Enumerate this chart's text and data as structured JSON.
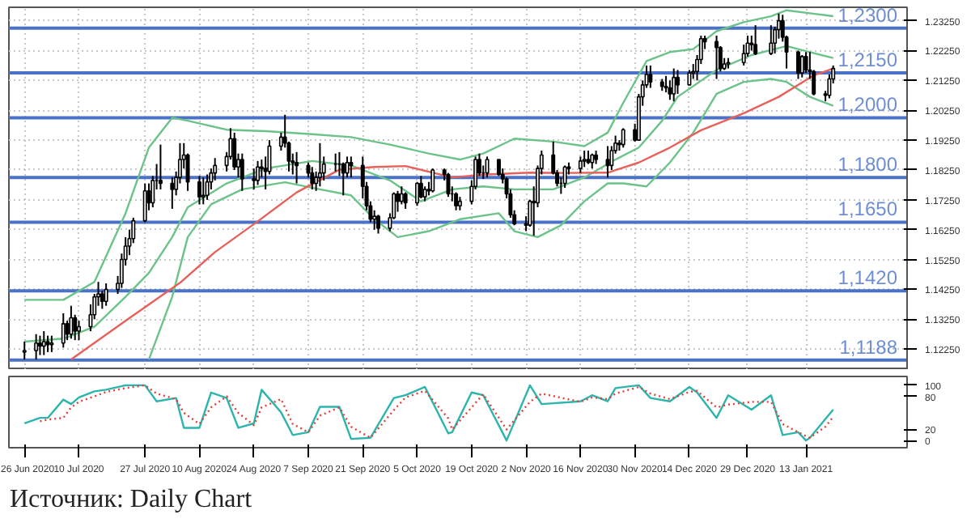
{
  "chart_data": [
    {
      "type": "candlestick",
      "x": [
        "2020-06-26",
        "2020-06-29",
        "2020-06-30",
        "2020-07-01",
        "2020-07-02",
        "2020-07-03",
        "2020-07-06",
        "2020-07-07",
        "2020-07-08",
        "2020-07-09",
        "2020-07-10",
        "2020-07-13",
        "2020-07-14",
        "2020-07-15",
        "2020-07-16",
        "2020-07-17",
        "2020-07-20",
        "2020-07-21",
        "2020-07-22",
        "2020-07-23",
        "2020-07-24",
        "2020-07-27",
        "2020-07-28",
        "2020-07-29",
        "2020-07-30",
        "2020-07-31",
        "2020-08-03",
        "2020-08-04",
        "2020-08-05",
        "2020-08-06",
        "2020-08-07",
        "2020-08-10",
        "2020-08-11",
        "2020-08-12",
        "2020-08-13",
        "2020-08-14",
        "2020-08-17",
        "2020-08-18",
        "2020-08-19",
        "2020-08-20",
        "2020-08-21",
        "2020-08-24",
        "2020-08-25",
        "2020-08-26",
        "2020-08-27",
        "2020-08-28",
        "2020-08-31",
        "2020-09-01",
        "2020-09-02",
        "2020-09-03",
        "2020-09-04",
        "2020-09-07",
        "2020-09-08",
        "2020-09-09",
        "2020-09-10",
        "2020-09-11",
        "2020-09-14",
        "2020-09-15",
        "2020-09-16",
        "2020-09-17",
        "2020-09-18",
        "2020-09-21",
        "2020-09-22",
        "2020-09-23",
        "2020-09-24",
        "2020-09-25",
        "2020-09-28",
        "2020-09-29",
        "2020-09-30",
        "2020-10-01",
        "2020-10-02",
        "2020-10-05",
        "2020-10-06",
        "2020-10-07",
        "2020-10-08",
        "2020-10-09",
        "2020-10-12",
        "2020-10-13",
        "2020-10-14",
        "2020-10-15",
        "2020-10-16",
        "2020-10-19",
        "2020-10-20",
        "2020-10-21",
        "2020-10-22",
        "2020-10-23",
        "2020-10-26",
        "2020-10-27",
        "2020-10-28",
        "2020-10-29",
        "2020-10-30",
        "2020-11-02",
        "2020-11-03",
        "2020-11-04",
        "2020-11-05",
        "2020-11-06",
        "2020-11-09",
        "2020-11-10",
        "2020-11-11",
        "2020-11-12",
        "2020-11-13",
        "2020-11-16",
        "2020-11-17",
        "2020-11-18",
        "2020-11-19",
        "2020-11-20",
        "2020-11-23",
        "2020-11-24",
        "2020-11-25",
        "2020-11-26",
        "2020-11-27",
        "2020-11-30",
        "2020-12-01",
        "2020-12-02",
        "2020-12-03",
        "2020-12-04",
        "2020-12-07",
        "2020-12-08",
        "2020-12-09",
        "2020-12-10",
        "2020-12-11",
        "2020-12-14",
        "2020-12-15",
        "2020-12-16",
        "2020-12-17",
        "2020-12-18",
        "2020-12-21",
        "2020-12-22",
        "2020-12-23",
        "2020-12-24",
        "2020-12-28",
        "2020-12-29",
        "2020-12-30",
        "2020-12-31",
        "2021-01-04",
        "2021-01-05",
        "2021-01-06",
        "2021-01-07",
        "2021-01-08",
        "2021-01-11",
        "2021-01-12",
        "2021-01-13",
        "2021-01-14",
        "2021-01-15",
        "2021-01-18",
        "2021-01-19",
        "2021-01-20"
      ],
      "ohlc": [
        [
          1.1215,
          1.125,
          1.119,
          1.122
        ],
        [
          1.122,
          1.1275,
          1.119,
          1.1245
        ],
        [
          1.1245,
          1.127,
          1.1205,
          1.1235
        ],
        [
          1.1235,
          1.1285,
          1.1205,
          1.125
        ],
        [
          1.125,
          1.127,
          1.1215,
          1.124
        ],
        [
          1.124,
          1.127,
          1.1215,
          1.1245
        ],
        [
          1.1245,
          1.1345,
          1.123,
          1.131
        ],
        [
          1.131,
          1.132,
          1.1255,
          1.1275
        ],
        [
          1.1275,
          1.137,
          1.126,
          1.133
        ],
        [
          1.133,
          1.134,
          1.1255,
          1.1285
        ],
        [
          1.1285,
          1.132,
          1.1255,
          1.13
        ],
        [
          1.13,
          1.1375,
          1.1285,
          1.134
        ],
        [
          1.134,
          1.141,
          1.1325,
          1.14
        ],
        [
          1.14,
          1.145,
          1.137,
          1.141
        ],
        [
          1.141,
          1.142,
          1.136,
          1.1385
        ],
        [
          1.1385,
          1.1445,
          1.137,
          1.1425
        ],
        [
          1.1425,
          1.147,
          1.141,
          1.1445
        ],
        [
          1.1445,
          1.1545,
          1.143,
          1.1525
        ],
        [
          1.1525,
          1.16,
          1.1505,
          1.157
        ],
        [
          1.157,
          1.1625,
          1.154,
          1.1595
        ],
        [
          1.1595,
          1.1665,
          1.158,
          1.1655
        ],
        [
          1.1655,
          1.178,
          1.165,
          1.1755
        ],
        [
          1.1755,
          1.178,
          1.169,
          1.1715
        ],
        [
          1.1715,
          1.1805,
          1.17,
          1.179
        ],
        [
          1.179,
          1.1845,
          1.176,
          1.179
        ],
        [
          1.179,
          1.191,
          1.176,
          1.178
        ],
        [
          1.178,
          1.18,
          1.1695,
          1.176
        ],
        [
          1.176,
          1.182,
          1.174,
          1.18
        ],
        [
          1.18,
          1.1915,
          1.178,
          1.186
        ],
        [
          1.186,
          1.1915,
          1.183,
          1.1875
        ],
        [
          1.1875,
          1.188,
          1.1755,
          1.1785
        ],
        [
          1.1785,
          1.1805,
          1.171,
          1.1735
        ],
        [
          1.1735,
          1.18,
          1.171,
          1.174
        ],
        [
          1.174,
          1.181,
          1.1725,
          1.1785
        ],
        [
          1.1785,
          1.183,
          1.176,
          1.1815
        ],
        [
          1.1815,
          1.1865,
          1.179,
          1.184
        ],
        [
          1.184,
          1.1885,
          1.182,
          1.187
        ],
        [
          1.187,
          1.1965,
          1.186,
          1.193
        ],
        [
          1.193,
          1.195,
          1.1825,
          1.1835
        ],
        [
          1.1835,
          1.188,
          1.18,
          1.186
        ],
        [
          1.186,
          1.188,
          1.1755,
          1.1795
        ],
        [
          1.1795,
          1.183,
          1.176,
          1.179
        ],
        [
          1.179,
          1.1855,
          1.1775,
          1.1835
        ],
        [
          1.1835,
          1.186,
          1.18,
          1.183
        ],
        [
          1.183,
          1.187,
          1.176,
          1.182
        ],
        [
          1.182,
          1.1925,
          1.181,
          1.1905
        ],
        [
          1.1905,
          1.195,
          1.189,
          1.1935
        ],
        [
          1.1935,
          1.201,
          1.19,
          1.1915
        ],
        [
          1.1915,
          1.192,
          1.182,
          1.1855
        ],
        [
          1.1855,
          1.188,
          1.181,
          1.185
        ],
        [
          1.185,
          1.1885,
          1.178,
          1.184
        ],
        [
          1.184,
          1.185,
          1.18,
          1.1815
        ],
        [
          1.1815,
          1.1835,
          1.176,
          1.178
        ],
        [
          1.178,
          1.182,
          1.1755,
          1.18
        ],
        [
          1.18,
          1.1915,
          1.177,
          1.1815
        ],
        [
          1.1815,
          1.187,
          1.179,
          1.1845
        ],
        [
          1.1845,
          1.188,
          1.182,
          1.1845
        ],
        [
          1.1845,
          1.1885,
          1.1805,
          1.1845
        ],
        [
          1.1845,
          1.185,
          1.174,
          1.1815
        ],
        [
          1.1815,
          1.187,
          1.18,
          1.185
        ],
        [
          1.185,
          1.187,
          1.18,
          1.184
        ],
        [
          1.184,
          1.187,
          1.173,
          1.177
        ],
        [
          1.177,
          1.1785,
          1.169,
          1.1705
        ],
        [
          1.1705,
          1.172,
          1.165,
          1.166
        ],
        [
          1.166,
          1.169,
          1.1625,
          1.167
        ],
        [
          1.167,
          1.1675,
          1.1612,
          1.163
        ],
        [
          1.163,
          1.168,
          1.162,
          1.1665
        ],
        [
          1.1665,
          1.175,
          1.166,
          1.1745
        ],
        [
          1.1745,
          1.1755,
          1.1685,
          1.172
        ],
        [
          1.172,
          1.177,
          1.171,
          1.1745
        ],
        [
          1.1745,
          1.175,
          1.1695,
          1.1715
        ],
        [
          1.1715,
          1.1785,
          1.1705,
          1.178
        ],
        [
          1.178,
          1.1805,
          1.173,
          1.1735
        ],
        [
          1.1735,
          1.177,
          1.172,
          1.176
        ],
        [
          1.176,
          1.1785,
          1.174,
          1.1755
        ],
        [
          1.1755,
          1.183,
          1.175,
          1.1825
        ],
        [
          1.1825,
          1.183,
          1.179,
          1.181
        ],
        [
          1.181,
          1.1815,
          1.1735,
          1.1745
        ],
        [
          1.1745,
          1.177,
          1.172,
          1.1745
        ],
        [
          1.1745,
          1.175,
          1.169,
          1.1705
        ],
        [
          1.1705,
          1.1735,
          1.169,
          1.172
        ],
        [
          1.172,
          1.179,
          1.171,
          1.177
        ],
        [
          1.177,
          1.187,
          1.176,
          1.186
        ],
        [
          1.186,
          1.188,
          1.1805,
          1.1815
        ],
        [
          1.1815,
          1.184,
          1.1795,
          1.1815
        ],
        [
          1.1815,
          1.187,
          1.18,
          1.186
        ],
        [
          1.186,
          1.186,
          1.1805,
          1.181
        ],
        [
          1.181,
          1.183,
          1.178,
          1.1795
        ],
        [
          1.1795,
          1.18,
          1.173,
          1.1745
        ],
        [
          1.1745,
          1.176,
          1.1665,
          1.1675
        ],
        [
          1.1675,
          1.169,
          1.164,
          1.1645
        ],
        [
          1.1645,
          1.167,
          1.162,
          1.164
        ],
        [
          1.164,
          1.1725,
          1.1635,
          1.172
        ],
        [
          1.172,
          1.177,
          1.1605,
          1.1715
        ],
        [
          1.1715,
          1.184,
          1.17,
          1.183
        ],
        [
          1.183,
          1.189,
          1.181,
          1.1875
        ],
        [
          1.1875,
          1.192,
          1.181,
          1.1815
        ],
        [
          1.1815,
          1.1825,
          1.177,
          1.178
        ],
        [
          1.178,
          1.18,
          1.1745,
          1.178
        ],
        [
          1.178,
          1.184,
          1.1765,
          1.1835
        ],
        [
          1.1835,
          1.185,
          1.181,
          1.183
        ],
        [
          1.183,
          1.187,
          1.1815,
          1.1855
        ],
        [
          1.1855,
          1.189,
          1.1835,
          1.186
        ],
        [
          1.186,
          1.189,
          1.1845,
          1.185
        ],
        [
          1.185,
          1.188,
          1.183,
          1.1875
        ],
        [
          1.1875,
          1.189,
          1.1845,
          1.186
        ],
        [
          1.186,
          1.1905,
          1.18,
          1.184
        ],
        [
          1.184,
          1.1905,
          1.1825,
          1.189
        ],
        [
          1.189,
          1.194,
          1.188,
          1.1915
        ],
        [
          1.1915,
          1.1925,
          1.189,
          1.191
        ],
        [
          1.191,
          1.1965,
          1.19,
          1.196
        ],
        [
          1.196,
          1.198,
          1.192,
          1.1925
        ],
        [
          1.1925,
          1.208,
          1.1925,
          1.207
        ],
        [
          1.207,
          1.2125,
          1.204,
          1.211
        ],
        [
          1.211,
          1.2175,
          1.21,
          1.2145
        ],
        [
          1.2145,
          1.2175,
          1.21,
          1.212
        ],
        [
          1.212,
          1.213,
          1.209,
          1.2105
        ],
        [
          1.2105,
          1.214,
          1.2085,
          1.21
        ],
        [
          1.21,
          1.2125,
          1.206,
          1.208
        ],
        [
          1.208,
          1.2165,
          1.2055,
          1.2135
        ],
        [
          1.2135,
          1.216,
          1.208,
          1.211
        ],
        [
          1.211,
          1.216,
          1.211,
          1.215
        ],
        [
          1.215,
          1.218,
          1.213,
          1.2155
        ],
        [
          1.2155,
          1.221,
          1.2125,
          1.2195
        ],
        [
          1.2195,
          1.2275,
          1.218,
          1.2265
        ],
        [
          1.2265,
          1.2275,
          1.223,
          1.2255
        ],
        [
          1.2255,
          1.2275,
          1.213,
          1.2235
        ],
        [
          1.2235,
          1.224,
          1.2155,
          1.2165
        ],
        [
          1.2165,
          1.22,
          1.216,
          1.218
        ],
        [
          1.218,
          1.22,
          1.2165,
          1.2185
        ],
        [
          1.2185,
          1.2245,
          1.2175,
          1.2215
        ],
        [
          1.2215,
          1.2275,
          1.2205,
          1.225
        ],
        [
          1.225,
          1.2275,
          1.2225,
          1.2245
        ],
        [
          1.2245,
          1.231,
          1.221,
          1.2215
        ],
        [
          1.2215,
          1.231,
          1.221,
          1.225
        ],
        [
          1.225,
          1.2305,
          1.2215,
          1.2295
        ],
        [
          1.2295,
          1.2349,
          1.2265,
          1.2325
        ],
        [
          1.2325,
          1.2345,
          1.2255,
          1.227
        ],
        [
          1.227,
          1.2275,
          1.2165,
          1.222
        ],
        [
          1.222,
          1.2225,
          1.213,
          1.215
        ],
        [
          1.215,
          1.221,
          1.2135,
          1.2205
        ],
        [
          1.2205,
          1.222,
          1.215,
          1.216
        ],
        [
          1.216,
          1.222,
          1.213,
          1.2155
        ],
        [
          1.2155,
          1.216,
          1.2075,
          1.208
        ],
        [
          1.208,
          1.209,
          1.2055,
          1.2075
        ],
        [
          1.2075,
          1.2145,
          1.2065,
          1.213
        ],
        [
          1.213,
          1.2175,
          1.2115,
          1.2165
        ]
      ],
      "series": [
        {
          "type": "line",
          "color": "#6cc38a",
          "x": [
            "2020-06-26",
            "2020-07-06",
            "2020-07-14",
            "2020-07-22",
            "2020-07-28",
            "2020-08-03",
            "2020-08-07",
            "2020-08-17",
            "2020-08-27",
            "2020-09-08",
            "2020-09-18",
            "2020-09-28",
            "2020-10-08",
            "2020-10-16",
            "2020-10-22",
            "2020-10-30",
            "2020-11-09",
            "2020-11-17",
            "2020-11-23",
            "2020-11-27",
            "2020-12-03",
            "2020-12-09",
            "2020-12-15",
            "2020-12-21",
            "2020-12-28",
            "2021-01-04",
            "2021-01-08",
            "2021-01-14",
            "2021-01-20"
          ],
          "values": [
            1.139,
            1.139,
            1.145,
            1.168,
            1.19,
            1.2,
            1.199,
            1.196,
            1.1955,
            1.1945,
            1.1935,
            1.191,
            1.188,
            1.186,
            1.188,
            1.193,
            1.192,
            1.1905,
            1.195,
            1.205,
            1.219,
            1.222,
            1.223,
            1.229,
            1.232,
            1.234,
            1.236,
            1.235,
            1.234
          ]
        },
        {
          "type": "line",
          "color": "#6cc38a",
          "x": [
            "2020-06-26",
            "2020-07-06",
            "2020-07-14",
            "2020-07-22",
            "2020-07-28",
            "2020-08-03",
            "2020-08-07",
            "2020-08-17",
            "2020-08-27",
            "2020-09-08",
            "2020-09-18",
            "2020-09-28",
            "2020-10-06",
            "2020-10-14",
            "2020-10-22",
            "2020-10-30",
            "2020-11-09",
            "2020-11-17",
            "2020-11-25",
            "2020-12-01",
            "2020-12-07",
            "2020-12-11",
            "2020-12-21",
            "2020-12-30",
            "2021-01-08",
            "2021-01-14",
            "2021-01-20"
          ],
          "values": [
            1.125,
            1.126,
            1.13,
            1.14,
            1.148,
            1.16,
            1.17,
            1.178,
            1.183,
            1.1855,
            1.184,
            1.179,
            1.172,
            1.176,
            1.177,
            1.176,
            1.176,
            1.18,
            1.186,
            1.19,
            1.199,
            1.207,
            1.216,
            1.221,
            1.224,
            1.222,
            1.22
          ]
        },
        {
          "type": "line",
          "color": "#6cc38a",
          "x": [
            "2020-07-28",
            "2020-08-03",
            "2020-08-07",
            "2020-08-13",
            "2020-08-21",
            "2020-09-01",
            "2020-09-10",
            "2020-09-18",
            "2020-09-24",
            "2020-09-30",
            "2020-10-08",
            "2020-10-16",
            "2020-10-26",
            "2020-10-30",
            "2020-11-05",
            "2020-11-11",
            "2020-11-17",
            "2020-11-23",
            "2020-11-27",
            "2020-12-03",
            "2020-12-09",
            "2020-12-15",
            "2020-12-21",
            "2020-12-28",
            "2021-01-04",
            "2021-01-08",
            "2021-01-14",
            "2021-01-20"
          ],
          "values": [
            1.119,
            1.14,
            1.16,
            1.171,
            1.176,
            1.1784,
            1.176,
            1.174,
            1.166,
            1.16,
            1.162,
            1.166,
            1.168,
            1.162,
            1.16,
            1.164,
            1.172,
            1.178,
            1.178,
            1.177,
            1.185,
            1.195,
            1.208,
            1.212,
            1.213,
            1.212,
            1.207,
            1.204
          ]
        },
        {
          "type": "line",
          "color": "#e8605a",
          "x": [
            "2020-07-08",
            "2020-07-22",
            "2020-08-05",
            "2020-08-14",
            "2020-08-25",
            "2020-09-04",
            "2020-09-15",
            "2020-09-24",
            "2020-10-02",
            "2020-10-14",
            "2020-10-23",
            "2020-11-03",
            "2020-11-12",
            "2020-11-23",
            "2020-12-01",
            "2020-12-09",
            "2020-12-17",
            "2020-12-28",
            "2021-01-06",
            "2021-01-15",
            "2021-01-20"
          ],
          "values": [
            1.119,
            1.132,
            1.1447,
            1.155,
            1.1653,
            1.175,
            1.1826,
            1.1835,
            1.1838,
            1.18,
            1.181,
            1.1816,
            1.1815,
            1.1816,
            1.185,
            1.19,
            1.1958,
            1.2015,
            1.207,
            1.2142,
            1.2165
          ]
        }
      ],
      "ref_lines": [
        {
          "axis": "y",
          "value": 1.23,
          "label": "1,2300",
          "color": "#4a72c8"
        },
        {
          "axis": "y",
          "value": 1.215,
          "label": "1,2150",
          "color": "#4a72c8"
        },
        {
          "axis": "y",
          "value": 1.2,
          "label": "1,2000",
          "color": "#4a72c8"
        },
        {
          "axis": "y",
          "value": 1.18,
          "label": "1,1800",
          "color": "#4a72c8"
        },
        {
          "axis": "y",
          "value": 1.165,
          "label": "1,1650",
          "color": "#4a72c8"
        },
        {
          "axis": "y",
          "value": 1.142,
          "label": "1,1420",
          "color": "#4a72c8"
        },
        {
          "axis": "y",
          "value": 1.1188,
          "label": "1,1188",
          "color": "#4a72c8"
        }
      ],
      "xlim": [
        "2020-06-22",
        "2021-02-08"
      ],
      "ylim": [
        1.1155,
        1.237
      ],
      "xticks": [
        {
          "value": "2020-06-26",
          "label": null
        },
        {
          "value": "2020-07-10",
          "label": null
        },
        {
          "value": "2020-07-27",
          "label": null
        },
        {
          "value": "2020-08-10",
          "label": null
        },
        {
          "value": "2020-08-24",
          "label": null
        },
        {
          "value": "2020-09-07",
          "label": null
        },
        {
          "value": "2020-09-21",
          "label": null
        },
        {
          "value": "2020-10-05",
          "label": null
        },
        {
          "value": "2020-10-19",
          "label": null
        },
        {
          "value": "2020-11-02",
          "label": null
        },
        {
          "value": "2020-11-16",
          "label": null
        },
        {
          "value": "2020-11-30",
          "label": null
        },
        {
          "value": "2020-12-14",
          "label": null
        },
        {
          "value": "2020-12-29",
          "label": null
        },
        {
          "value": "2021-01-13",
          "label": null
        }
      ],
      "yticks": [
        {
          "value": 1.1225,
          "label": "1.12250"
        },
        {
          "value": 1.1325,
          "label": "1.13250"
        },
        {
          "value": 1.1425,
          "label": "1.14250"
        },
        {
          "value": 1.1525,
          "label": "1.15250"
        },
        {
          "value": 1.1625,
          "label": "1.16250"
        },
        {
          "value": 1.1725,
          "label": "1.17250"
        },
        {
          "value": 1.1825,
          "label": "1.18250"
        },
        {
          "value": 1.1925,
          "label": "1.19250"
        },
        {
          "value": 1.2025,
          "label": "1.20250"
        },
        {
          "value": 1.2125,
          "label": "1.21250"
        },
        {
          "value": 1.2225,
          "label": "1.22250"
        },
        {
          "value": 1.2325,
          "label": "1.23250"
        }
      ],
      "grid": true,
      "tick_labels": "y"
    },
    {
      "type": "line",
      "series": [
        {
          "color": "#2bb5ad",
          "line_style": "solid",
          "x": [
            "2020-06-26",
            "2020-06-30",
            "2020-07-02",
            "2020-07-06",
            "2020-07-08",
            "2020-07-10",
            "2020-07-14",
            "2020-07-17",
            "2020-07-22",
            "2020-07-27",
            "2020-07-30",
            "2020-08-04",
            "2020-08-06",
            "2020-08-10",
            "2020-08-13",
            "2020-08-17",
            "2020-08-20",
            "2020-08-24",
            "2020-08-26",
            "2020-08-31",
            "2020-09-03",
            "2020-09-07",
            "2020-09-10",
            "2020-09-15",
            "2020-09-18",
            "2020-09-23",
            "2020-09-29",
            "2020-10-02",
            "2020-10-07",
            "2020-10-13",
            "2020-10-14",
            "2020-10-19",
            "2020-10-22",
            "2020-10-28",
            "2020-11-03",
            "2020-11-06",
            "2020-11-16",
            "2020-11-19",
            "2020-11-23",
            "2020-11-25",
            "2020-12-01",
            "2020-12-04",
            "2020-12-09",
            "2020-12-14",
            "2020-12-16",
            "2020-12-21",
            "2020-12-24",
            "2020-12-30",
            "2021-01-04",
            "2021-01-07",
            "2021-01-11",
            "2021-01-13",
            "2021-01-14",
            "2021-01-20"
          ],
          "values": [
            31,
            41,
            41,
            74,
            66,
            78,
            89,
            92,
            100,
            100,
            71,
            77,
            23,
            23,
            87,
            77,
            23,
            31,
            92,
            51,
            10,
            15,
            61,
            61,
            3,
            5,
            77,
            82,
            97,
            13,
            15,
            87,
            82,
            0,
            100,
            66,
            71,
            82,
            71,
            95,
            100,
            77,
            71,
            97,
            87,
            41,
            82,
            56,
            82,
            10,
            15,
            0,
            5,
            56
          ]
        },
        {
          "color": "#e0413b",
          "line_style": "dotted",
          "x": [
            "2020-06-30",
            "2020-07-02",
            "2020-07-06",
            "2020-07-08",
            "2020-07-10",
            "2020-07-14",
            "2020-07-17",
            "2020-07-22",
            "2020-07-27",
            "2020-07-30",
            "2020-08-04",
            "2020-08-06",
            "2020-08-10",
            "2020-08-13",
            "2020-08-17",
            "2020-08-20",
            "2020-08-24",
            "2020-08-26",
            "2020-08-31",
            "2020-09-03",
            "2020-09-07",
            "2020-09-10",
            "2020-09-15",
            "2020-09-18",
            "2020-09-23",
            "2020-09-29",
            "2020-10-02",
            "2020-10-07",
            "2020-10-13",
            "2020-10-14",
            "2020-10-19",
            "2020-10-22",
            "2020-10-28",
            "2020-11-03",
            "2020-11-06",
            "2020-11-16",
            "2020-11-19",
            "2020-11-23",
            "2020-11-25",
            "2020-12-01",
            "2020-12-04",
            "2020-12-09",
            "2020-12-14",
            "2020-12-16",
            "2020-12-21",
            "2020-12-24",
            "2020-12-30",
            "2021-01-04",
            "2021-01-07",
            "2021-01-11",
            "2021-01-13",
            "2021-01-14",
            "2021-01-18",
            "2021-01-20"
          ],
          "values": [
            35,
            38,
            41,
            60,
            70,
            80,
            88,
            95,
            100,
            85,
            75,
            50,
            30,
            60,
            80,
            50,
            28,
            60,
            75,
            30,
            15,
            45,
            60,
            25,
            5,
            55,
            78,
            90,
            40,
            20,
            60,
            84,
            20,
            70,
            85,
            70,
            78,
            75,
            85,
            97,
            85,
            75,
            88,
            90,
            60,
            65,
            70,
            70,
            30,
            15,
            8,
            5,
            25,
            43
          ]
        }
      ],
      "xlim": [
        "2020-06-22",
        "2021-02-08"
      ],
      "ylim": [
        -13,
        116
      ],
      "xticks": [
        {
          "value": "2020-06-26",
          "label": "26 Jun 2020"
        },
        {
          "value": "2020-07-10",
          "label": "10 Jul 2020"
        },
        {
          "value": "2020-07-27",
          "label": "27 Jul 2020"
        },
        {
          "value": "2020-08-10",
          "label": "10 Aug 2020"
        },
        {
          "value": "2020-08-24",
          "label": "24 Aug 2020"
        },
        {
          "value": "2020-09-07",
          "label": "7 Sep 2020"
        },
        {
          "value": "2020-09-21",
          "label": "21 Sep 2020"
        },
        {
          "value": "2020-10-05",
          "label": "5 Oct 2020"
        },
        {
          "value": "2020-10-19",
          "label": "19 Oct 2020"
        },
        {
          "value": "2020-11-02",
          "label": "2 Nov 2020"
        },
        {
          "value": "2020-11-16",
          "label": "16 Nov 2020"
        },
        {
          "value": "2020-11-30",
          "label": "30 Nov 2020"
        },
        {
          "value": "2020-12-14",
          "label": "14 Dec 2020"
        },
        {
          "value": "2020-12-29",
          "label": "29 Dec 2020"
        },
        {
          "value": "2021-01-13",
          "label": "13 Jan 2021"
        }
      ],
      "yticks": [
        0,
        20,
        80,
        100
      ],
      "grid": false,
      "annotations": [
        "Источник: Daily Chart"
      ]
    }
  ]
}
